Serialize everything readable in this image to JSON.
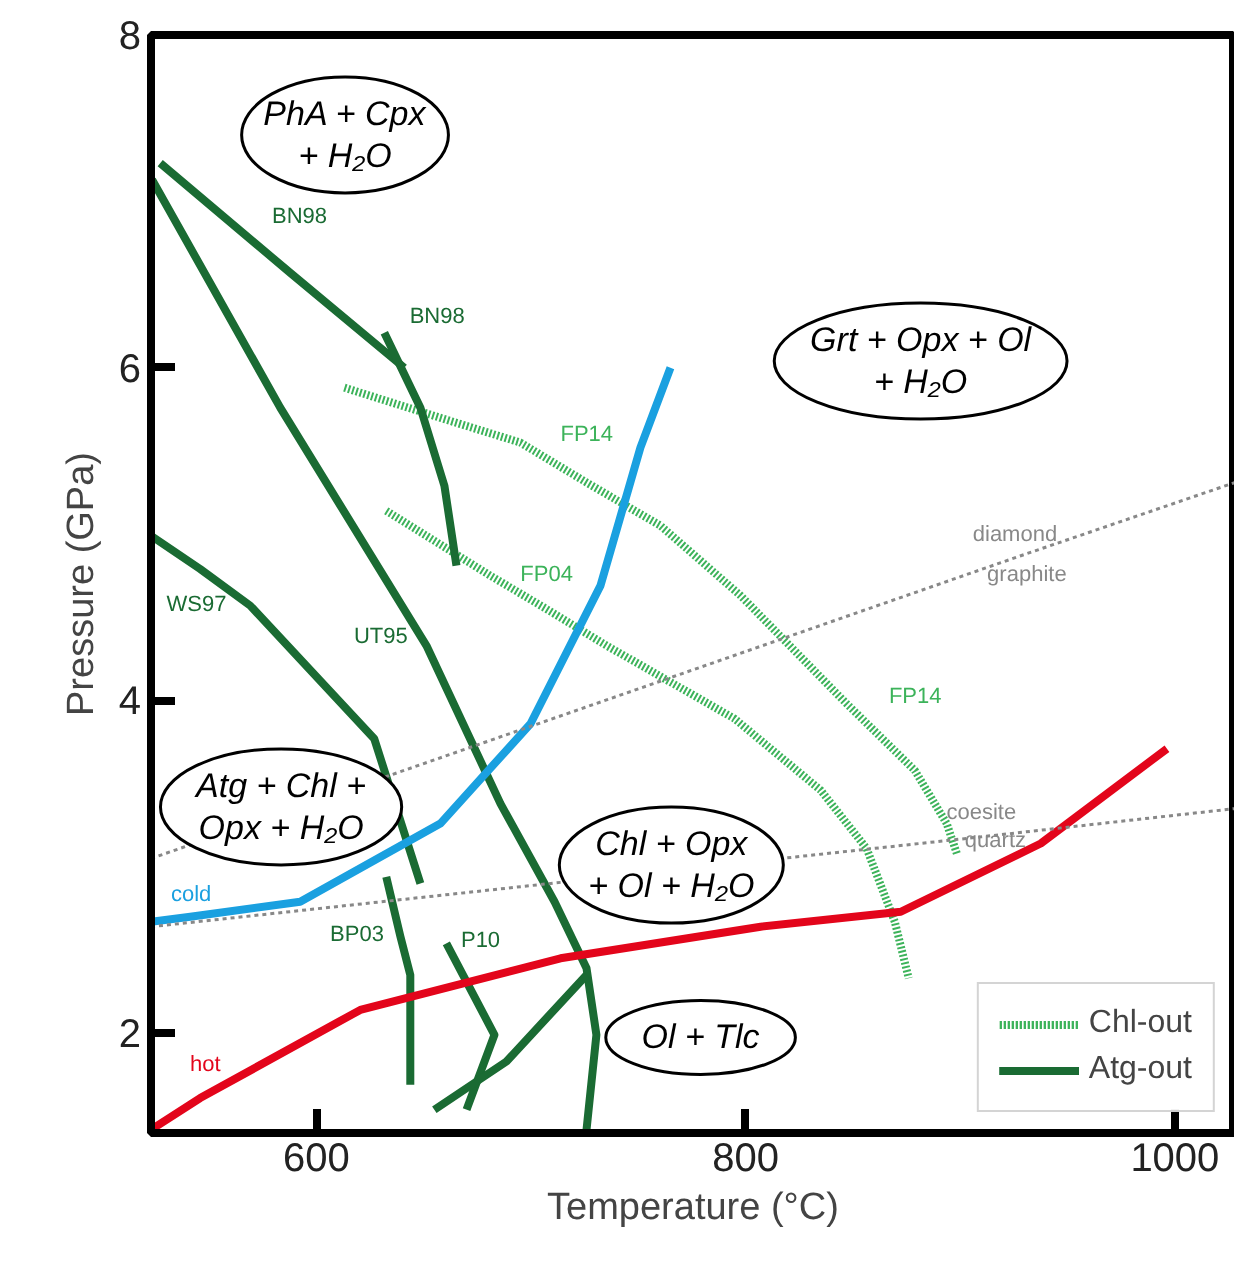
{
  "chart_data": {
    "type": "line",
    "xlabel": "Temperature (°C)",
    "ylabel": "Pressure (GPa)",
    "xlim": [
      523,
      1028
    ],
    "ylim": [
      1.4,
      8
    ],
    "xticks": [
      600,
      800,
      1000
    ],
    "yticks": [
      2,
      4,
      6,
      8
    ],
    "legend": "bottom right",
    "series": [
      {
        "name": "Chl-out",
        "color": "#3cb35a",
        "line_style": "dotted",
        "x": [
          613.1,
          662.5,
          695.1,
          725.9,
          760.4,
          797.7,
          847.1,
          878.8,
          893.7,
          898.4
        ],
        "values": [
          5.88,
          5.68,
          5.55,
          5.31,
          5.05,
          4.63,
          3.98,
          3.58,
          3.26,
          3.08
        ]
      },
      {
        "color": "#3cb35a",
        "line_style": "dotted",
        "x": [
          632.6,
          681.1,
          707.2,
          735.2,
          794.9,
          835.0,
          856.4,
          869.5,
          876.0
        ],
        "values": [
          5.14,
          4.75,
          4.55,
          4.33,
          3.89,
          3.46,
          3.11,
          2.67,
          2.33
        ]
      },
      {
        "name": "Atg-out",
        "color": "#1a6b33",
        "line_style": "solid",
        "x": [
          527.3,
          587.9,
          641.0
        ],
        "values": [
          7.23,
          6.57,
          6.0
        ]
      },
      {
        "color": "#1a6b33",
        "line_style": "solid",
        "x": [
          631.7,
          648.5,
          659.7,
          665.3
        ],
        "values": [
          6.21,
          5.76,
          5.29,
          4.81
        ]
      },
      {
        "color": "#1a6b33",
        "line_style": "solid",
        "x": [
          523.5,
          583.2,
          651.3,
          685.8,
          711.0,
          725.9,
          730.5,
          725.9
        ],
        "values": [
          7.13,
          5.76,
          4.33,
          3.38,
          2.79,
          2.39,
          1.99,
          1.42
        ]
      },
      {
        "color": "#1a6b33",
        "line_style": "solid",
        "x": [
          523,
          545.9,
          569.2,
          627.0,
          648.5
        ],
        "values": [
          4.99,
          4.79,
          4.57,
          3.77,
          2.9
        ]
      },
      {
        "color": "#1a6b33",
        "line_style": "solid",
        "x": [
          632.6,
          639.2,
          643.8,
          643.8
        ],
        "values": [
          2.94,
          2.58,
          2.35,
          1.69
        ]
      },
      {
        "color": "#1a6b33",
        "line_style": "solid",
        "x": [
          660.6,
          683.0,
          670.0
        ],
        "values": [
          2.54,
          1.99,
          1.54
        ]
      },
      {
        "color": "#1a6b33",
        "line_style": "solid",
        "x": [
          655.0,
          688.6,
          725.9
        ],
        "values": [
          1.54,
          1.83,
          2.35
        ]
      },
      {
        "color": "#1aa0e0",
        "line_style": "solid",
        "x": [
          523,
          541.3,
          592.5,
          657.8,
          699.8,
          732.4,
          751.0,
          765.0
        ],
        "values": [
          2.67,
          2.7,
          2.79,
          3.26,
          3.86,
          4.69,
          5.52,
          6.0
        ]
      },
      {
        "color": "#e3051b",
        "line_style": "solid",
        "x": [
          523,
          545.9,
          620.5,
          713.8,
          807.0,
          872.3,
          937.5,
          996.3
        ],
        "values": [
          1.42,
          1.61,
          2.14,
          2.45,
          2.64,
          2.73,
          3.14,
          3.71
        ]
      },
      {
        "color": "#888888",
        "line_style": "dotted",
        "x": [
          523,
          928.2,
          1028
        ],
        "values": [
          3.05,
          4.87,
          5.31
        ]
      },
      {
        "color": "#888888",
        "line_style": "dotted",
        "x": [
          523,
          909.6,
          1028
        ],
        "values": [
          2.64,
          3.18,
          3.35
        ]
      }
    ],
    "annotations": [
      "PhA + Cpx\n+ H₂O",
      "Grt + Opx + Ol\n+ H₂O",
      "Atg + Chl +\nOpx + H₂O",
      "Chl + Opx\n+ Ol + H₂O",
      "Ol + Tlc",
      "BN98",
      "BN98",
      "FP14",
      "FP04",
      "FP14",
      "WS97",
      "UT95",
      "BP03",
      "P10",
      "cold",
      "hot",
      "diamond",
      "graphite",
      "coesite",
      "quartz"
    ]
  }
}
